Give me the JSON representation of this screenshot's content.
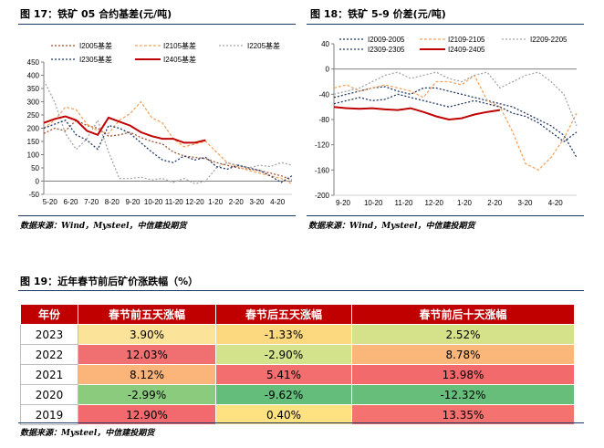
{
  "fig17": {
    "title": "图 17：铁矿 05 合约基差(元/吨)",
    "source": "数据来源：Wind，Mysteel，中信建投期货",
    "chart_data": {
      "type": "line",
      "x_ticks": [
        "5-20",
        "6-20",
        "7-20",
        "8-20",
        "9-20",
        "10-20",
        "11-20",
        "12-20",
        "1-20",
        "2-20",
        "3-20",
        "4-20"
      ],
      "ylim": [
        -50,
        450
      ],
      "y_ticks": [
        -50,
        0,
        50,
        100,
        150,
        200,
        250,
        300,
        350,
        400,
        450
      ],
      "series": [
        {
          "name": "I2005基差",
          "color": "#a0522d",
          "dash": "2,2",
          "width": 1.3,
          "values": [
            180,
            200,
            190,
            230,
            210,
            200,
            170,
            175,
            185,
            165,
            150,
            140,
            110,
            95,
            90,
            85,
            70,
            60,
            50,
            45,
            40,
            30,
            20,
            5
          ]
        },
        {
          "name": "I2105基差",
          "color": "#f4a460",
          "dash": "3,2",
          "width": 1.3,
          "values": [
            200,
            230,
            280,
            270,
            215,
            190,
            180,
            230,
            255,
            300,
            240,
            220,
            160,
            130,
            140,
            150,
            110,
            70,
            55,
            40,
            30,
            20,
            10,
            -10
          ]
        },
        {
          "name": "I2205基差",
          "color": "#a6a6a6",
          "dash": "2,2",
          "width": 1.3,
          "values": [
            380,
            300,
            180,
            120,
            160,
            230,
            110,
            10,
            10,
            15,
            5,
            10,
            -5,
            10,
            -10,
            0,
            50,
            70,
            60,
            50,
            60,
            55,
            70,
            60
          ]
        },
        {
          "name": "I2305基差",
          "color": "#1f3864",
          "dash": "2,2",
          "width": 1.3,
          "values": [
            200,
            215,
            230,
            175,
            155,
            120,
            210,
            200,
            180,
            145,
            110,
            80,
            70,
            95,
            80,
            90,
            55,
            45,
            60,
            50,
            40,
            20,
            -5,
            20
          ]
        },
        {
          "name": "I2405基差",
          "color": "#c00000",
          "dash": "",
          "width": 2,
          "values": [
            220,
            235,
            245,
            230,
            190,
            175,
            240,
            225,
            210,
            185,
            170,
            160,
            160,
            145,
            145,
            155
          ]
        }
      ]
    }
  },
  "fig18": {
    "title": "图 18：铁矿 5-9 价差(元/吨)",
    "source": "数据来源：Wind，Mysteel，中信建投期货",
    "chart_data": {
      "type": "line",
      "x_ticks": [
        "9-20",
        "10-20",
        "11-20",
        "12-20",
        "1-20",
        "2-20",
        "3-20",
        "4-20"
      ],
      "ylim": [
        -200,
        40
      ],
      "y_ticks": [
        -200,
        -160,
        -120,
        -80,
        -40,
        0,
        40
      ],
      "series": [
        {
          "name": "I2009-2005",
          "color": "#1f3864",
          "dash": "2,2",
          "width": 1.3,
          "values": [
            -45,
            -40,
            -35,
            -30,
            -28,
            -35,
            -40,
            -30,
            -30,
            -35,
            -40,
            -45,
            -50,
            -55,
            -60,
            -70,
            -80,
            -90,
            -105,
            -140
          ]
        },
        {
          "name": "I2109-2105",
          "color": "#f4a460",
          "dash": "3,2",
          "width": 1.3,
          "values": [
            -30,
            -25,
            -35,
            -30,
            -25,
            -30,
            -35,
            -45,
            -20,
            -20,
            -25,
            -10,
            -50,
            -60,
            -100,
            -150,
            -160,
            -140,
            -110,
            -70
          ]
        },
        {
          "name": "I2209-2205",
          "color": "#a6a6a6",
          "dash": "2,2",
          "width": 1.3,
          "values": [
            -40,
            -35,
            -30,
            -20,
            -10,
            -5,
            -15,
            -10,
            -5,
            -15,
            -20,
            -10,
            -5,
            -30,
            -20,
            -10,
            -5,
            -20,
            -40,
            -90
          ]
        },
        {
          "name": "I2309-2305",
          "color": "#1f3864",
          "dash": "2,2",
          "width": 1.3,
          "values": [
            -55,
            -50,
            -45,
            -50,
            -48,
            -40,
            -45,
            -50,
            -55,
            -60,
            -55,
            -50,
            -55,
            -60,
            -70,
            -75,
            -85,
            -100,
            -115,
            -100
          ]
        },
        {
          "name": "I2409-2405",
          "color": "#c00000",
          "dash": "",
          "width": 2,
          "values": [
            -60,
            -62,
            -63,
            -62,
            -64,
            -65,
            -62,
            -68,
            -75,
            -80,
            -78,
            -72,
            -68,
            -65
          ]
        }
      ]
    }
  },
  "fig19": {
    "title": "图 19：近年春节前后矿价涨跌幅（%）",
    "source": "数据来源：Mysteel，中信建投期货",
    "headers": [
      "年份",
      "春节前五天涨幅",
      "春节后五天涨幅",
      "春节前后十天涨幅"
    ],
    "rows": [
      {
        "year": "2023",
        "cells": [
          {
            "v": "3.90%",
            "c": "#fbe49a"
          },
          {
            "v": "-1.33%",
            "c": "#fcd97e"
          },
          {
            "v": "2.52%",
            "c": "#d6e28a"
          }
        ]
      },
      {
        "year": "2022",
        "cells": [
          {
            "v": "12.03%",
            "c": "#f07072"
          },
          {
            "v": "-2.90%",
            "c": "#d3e38b"
          },
          {
            "v": "8.78%",
            "c": "#fbb679"
          }
        ]
      },
      {
        "year": "2021",
        "cells": [
          {
            "v": "8.12%",
            "c": "#fbb57a"
          },
          {
            "v": "5.41%",
            "c": "#f26e6f"
          },
          {
            "v": "13.98%",
            "c": "#f36a6c"
          }
        ]
      },
      {
        "year": "2020",
        "cells": [
          {
            "v": "-2.99%",
            "c": "#8bcb7e"
          },
          {
            "v": "-9.62%",
            "c": "#64bd7b"
          },
          {
            "v": "-12.32%",
            "c": "#67be7b"
          }
        ]
      },
      {
        "year": "2019",
        "cells": [
          {
            "v": "12.90%",
            "c": "#f26a6d"
          },
          {
            "v": "0.40%",
            "c": "#fee281"
          },
          {
            "v": "13.35%",
            "c": "#f47270"
          }
        ]
      }
    ]
  }
}
